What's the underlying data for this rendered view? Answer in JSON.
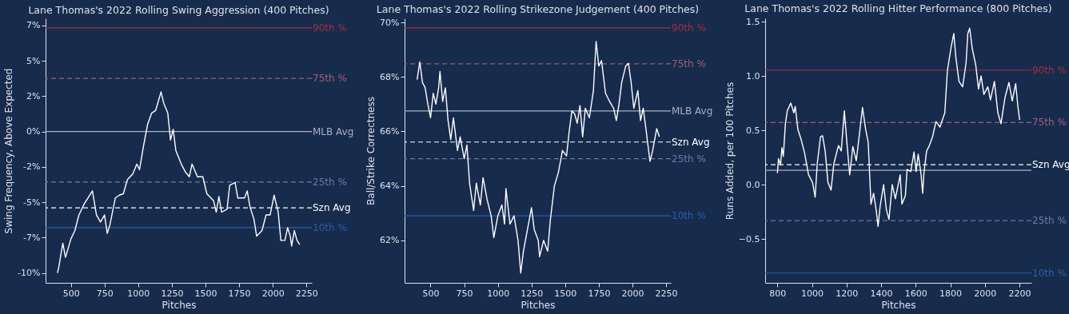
{
  "chart_data": [
    {
      "type": "line",
      "title": "Lane Thomas's 2022 Rolling Swing Aggression (400 Pitches)",
      "xlabel": "Pitches",
      "ylabel": "Swing Frequency, Above Expected",
      "x": [
        400,
        410,
        440,
        460,
        500,
        530,
        560,
        600,
        640,
        660,
        690,
        720,
        750,
        770,
        790,
        830,
        860,
        890,
        920,
        960,
        990,
        1010,
        1040,
        1070,
        1100,
        1130,
        1170,
        1190,
        1220,
        1240,
        1260,
        1280,
        1320,
        1350,
        1380,
        1400,
        1440,
        1480,
        1510,
        1560,
        1580,
        1600,
        1620,
        1660,
        1680,
        1720,
        1740,
        1790,
        1810,
        1830,
        1860,
        1880,
        1920,
        1950,
        1980,
        2010,
        2040,
        2060,
        2090,
        2110,
        2130,
        2140,
        2160,
        2180,
        2200
      ],
      "series": [
        {
          "color": "#ffffff",
          "values": [
            -10.0,
            -9.6,
            -7.9,
            -8.9,
            -7.6,
            -7.0,
            -5.9,
            -5.1,
            -4.5,
            -4.2,
            -5.9,
            -6.4,
            -5.9,
            -7.2,
            -6.6,
            -4.7,
            -4.5,
            -4.4,
            -3.4,
            -3.0,
            -2.3,
            -2.7,
            -1.0,
            0.5,
            1.3,
            1.5,
            2.8,
            2.0,
            1.3,
            -0.6,
            0.15,
            -1.35,
            -2.3,
            -2.85,
            -3.2,
            -2.3,
            -3.2,
            -3.2,
            -4.4,
            -4.9,
            -5.7,
            -4.6,
            -5.7,
            -5.5,
            -3.8,
            -3.6,
            -4.7,
            -4.7,
            -4.2,
            -5.3,
            -6.2,
            -7.4,
            -7.0,
            -5.9,
            -5.9,
            -4.5,
            -5.7,
            -7.7,
            -7.7,
            -6.8,
            -7.4,
            -8.1,
            -7.0,
            -7.7,
            -8.0
          ]
        }
      ],
      "xlim": [
        312,
        2290
      ],
      "xticks": [
        500,
        750,
        1000,
        1250,
        1500,
        1750,
        2000,
        2250
      ],
      "ylim": [
        -10.7,
        8.0
      ],
      "yticks": [
        {
          "value": -10,
          "label": "-10%"
        },
        {
          "value": -7.5,
          "label": "-7%"
        },
        {
          "value": -5,
          "label": "-5%"
        },
        {
          "value": -2.5,
          "label": "-2%"
        },
        {
          "value": 0,
          "label": "0%"
        },
        {
          "value": 2.5,
          "label": "2%"
        },
        {
          "value": 5,
          "label": "5%"
        },
        {
          "value": 7.5,
          "label": "7%"
        }
      ],
      "ref_lines": [
        {
          "axis": "y",
          "value": 7.33,
          "label": "90th %",
          "color": "#a3303f",
          "line_style": "solid"
        },
        {
          "axis": "y",
          "value": 3.76,
          "label": "75th %",
          "color": "#a0606e",
          "line_style": "dashed"
        },
        {
          "axis": "y",
          "value": 0,
          "label": "MLB Avg",
          "color": "#a9b1c2",
          "line_style": "solid"
        },
        {
          "axis": "y",
          "value": -3.58,
          "label": "25th %",
          "color": "#6c7ca0",
          "line_style": "dashed"
        },
        {
          "axis": "y",
          "value": -5.4,
          "label": "Szn Avg",
          "color": "#ffffff",
          "line_style": "dashed"
        },
        {
          "axis": "y",
          "value": -6.8,
          "label": "10th %",
          "color": "#2d5ea8",
          "line_style": "solid"
        }
      ]
    },
    {
      "type": "line",
      "title": "Lane Thomas's 2022 Rolling Strikezone Judgement (400 Pitches)",
      "xlabel": "Pitches",
      "ylabel": "Ball/Strike Correctness",
      "x": [
        400,
        420,
        440,
        460,
        480,
        500,
        520,
        540,
        560,
        570,
        590,
        610,
        630,
        650,
        670,
        700,
        720,
        750,
        770,
        790,
        820,
        840,
        870,
        890,
        920,
        950,
        970,
        1000,
        1030,
        1050,
        1060,
        1090,
        1120,
        1150,
        1170,
        1190,
        1220,
        1250,
        1270,
        1300,
        1310,
        1340,
        1370,
        1390,
        1420,
        1450,
        1480,
        1510,
        1530,
        1550,
        1570,
        1590,
        1610,
        1630,
        1650,
        1680,
        1710,
        1730,
        1750,
        1770,
        1800,
        1830,
        1860,
        1880,
        1900,
        1920,
        1950,
        1970,
        1990,
        2010,
        2040,
        2060,
        2080,
        2100,
        2130,
        2150,
        2180,
        2200
      ],
      "series": [
        {
          "color": "#ffffff",
          "values": [
            67.9,
            68.55,
            67.8,
            67.6,
            67.0,
            66.5,
            67.4,
            67.0,
            67.6,
            68.2,
            67.1,
            67.6,
            66.4,
            65.7,
            66.5,
            65.3,
            65.8,
            65.0,
            65.5,
            64.1,
            63.1,
            64.1,
            63.3,
            64.3,
            63.5,
            62.9,
            62.1,
            62.9,
            63.3,
            62.6,
            63.9,
            62.6,
            62.9,
            62.0,
            60.8,
            61.6,
            62.4,
            63.2,
            62.4,
            62.0,
            61.4,
            62.0,
            61.6,
            62.75,
            64.0,
            64.5,
            65.3,
            65.1,
            66.0,
            66.75,
            66.65,
            66.3,
            66.95,
            65.8,
            66.85,
            66.5,
            67.5,
            69.3,
            68.4,
            68.6,
            67.4,
            67.1,
            66.85,
            66.4,
            67.0,
            67.8,
            68.4,
            68.5,
            67.8,
            66.85,
            67.5,
            66.4,
            66.85,
            66.1,
            64.9,
            65.3,
            66.1,
            65.8
          ]
        }
      ],
      "xlim": [
        307,
        2285
      ],
      "xticks": [
        500,
        750,
        1000,
        1250,
        1500,
        1750,
        2000,
        2250
      ],
      "ylim": [
        60.44,
        70.15
      ],
      "yticks": [
        {
          "value": 62,
          "label": "62%"
        },
        {
          "value": 64,
          "label": "64%"
        },
        {
          "value": 66,
          "label": "66%"
        },
        {
          "value": 68,
          "label": "68%"
        },
        {
          "value": 70,
          "label": "70%"
        }
      ],
      "ref_lines": [
        {
          "axis": "y",
          "value": 69.8,
          "label": "90th %",
          "color": "#a3303f",
          "line_style": "solid"
        },
        {
          "axis": "y",
          "value": 68.48,
          "label": "75th %",
          "color": "#a0606e",
          "line_style": "dashed"
        },
        {
          "axis": "y",
          "value": 66.75,
          "label": "MLB Avg",
          "color": "#a9b1c2",
          "line_style": "solid"
        },
        {
          "axis": "y",
          "value": 65.61,
          "label": "Szn Avg",
          "color": "#ffffff",
          "line_style": "dashed"
        },
        {
          "axis": "y",
          "value": 65.0,
          "label": "25th %",
          "color": "#6c7ca0",
          "line_style": "dashed"
        },
        {
          "axis": "y",
          "value": 62.9,
          "label": "10th %",
          "color": "#2d5ea8",
          "line_style": "solid"
        }
      ]
    },
    {
      "type": "line",
      "title": "Lane Thomas's 2022 Rolling Hitter Performance (800 Pitches)",
      "xlabel": "Pitches",
      "ylabel": "Runs Added, per 100 Pitches",
      "x": [
        800,
        806,
        818,
        826,
        834,
        846,
        857,
        877,
        895,
        903,
        918,
        938,
        957,
        980,
        1003,
        1018,
        1030,
        1049,
        1061,
        1076,
        1092,
        1110,
        1126,
        1153,
        1169,
        1187,
        1203,
        1218,
        1236,
        1256,
        1279,
        1292,
        1310,
        1325,
        1341,
        1356,
        1371,
        1382,
        1394,
        1414,
        1430,
        1445,
        1464,
        1482,
        1510,
        1520,
        1540,
        1550,
        1571,
        1590,
        1602,
        1614,
        1630,
        1640,
        1648,
        1663,
        1679,
        1697,
        1717,
        1740,
        1768,
        1783,
        1805,
        1820,
        1832,
        1850,
        1871,
        1891,
        1901,
        1912,
        1927,
        1947,
        1963,
        1978,
        1994,
        2017,
        2032,
        2055,
        2075,
        2093,
        2116,
        2139,
        2158,
        2178,
        2190,
        2201
      ],
      "series": [
        {
          "color": "#ffffff",
          "values": [
            0.105,
            0.24,
            0.18,
            0.34,
            0.26,
            0.56,
            0.68,
            0.75,
            0.66,
            0.72,
            0.51,
            0.41,
            0.29,
            0.09,
            0.02,
            -0.115,
            0.19,
            0.44,
            0.45,
            0.31,
            0.02,
            -0.05,
            0.19,
            0.36,
            0.31,
            0.68,
            0.36,
            0.09,
            0.35,
            0.22,
            0.53,
            0.71,
            0.51,
            0.39,
            -0.18,
            -0.08,
            -0.23,
            -0.385,
            -0.2,
            0.0,
            -0.23,
            -0.32,
            0.0,
            -0.13,
            0.09,
            -0.18,
            -0.1,
            0.14,
            0.12,
            0.3,
            0.12,
            0.28,
            0.105,
            -0.08,
            0.12,
            0.31,
            0.36,
            0.44,
            0.58,
            0.53,
            0.66,
            1.05,
            1.27,
            1.39,
            1.17,
            0.95,
            0.9,
            1.12,
            1.39,
            1.44,
            1.25,
            1.1,
            0.88,
            1.0,
            0.83,
            0.9,
            0.78,
            0.95,
            0.66,
            0.56,
            0.8,
            0.94,
            0.77,
            0.93,
            0.73,
            0.595
          ]
        }
      ],
      "xlim": [
        729,
        2269
      ],
      "xticks": [
        800,
        1000,
        1200,
        1400,
        1600,
        1800,
        2000,
        2200
      ],
      "ylim": [
        -0.904,
        1.53
      ],
      "yticks": [
        {
          "value": -0.5,
          "label": "−0.5"
        },
        {
          "value": 0,
          "label": "0.0"
        },
        {
          "value": 0.5,
          "label": "0.5"
        },
        {
          "value": 1,
          "label": "1.0"
        },
        {
          "value": 1.5,
          "label": "1.5"
        }
      ],
      "ref_lines": [
        {
          "axis": "y",
          "value": 1.054,
          "label": "90th %",
          "color": "#a3303f",
          "line_style": "solid"
        },
        {
          "axis": "y",
          "value": 0.571,
          "label": "75th %",
          "color": "#a0606e",
          "line_style": "dashed"
        },
        {
          "axis": "y",
          "value": 0.184,
          "label": "Szn Avg",
          "color": "#ffffff",
          "line_style": "dashed"
        },
        {
          "axis": "y",
          "value": 0.132,
          "color": "#a9b1c2",
          "line_style": "solid"
        },
        {
          "axis": "y",
          "value": -0.331,
          "label": "25th %",
          "color": "#6c7ca0",
          "line_style": "dashed"
        },
        {
          "axis": "y",
          "value": -0.814,
          "label": "10th %",
          "color": "#2d5ea8",
          "line_style": "solid"
        }
      ]
    }
  ]
}
